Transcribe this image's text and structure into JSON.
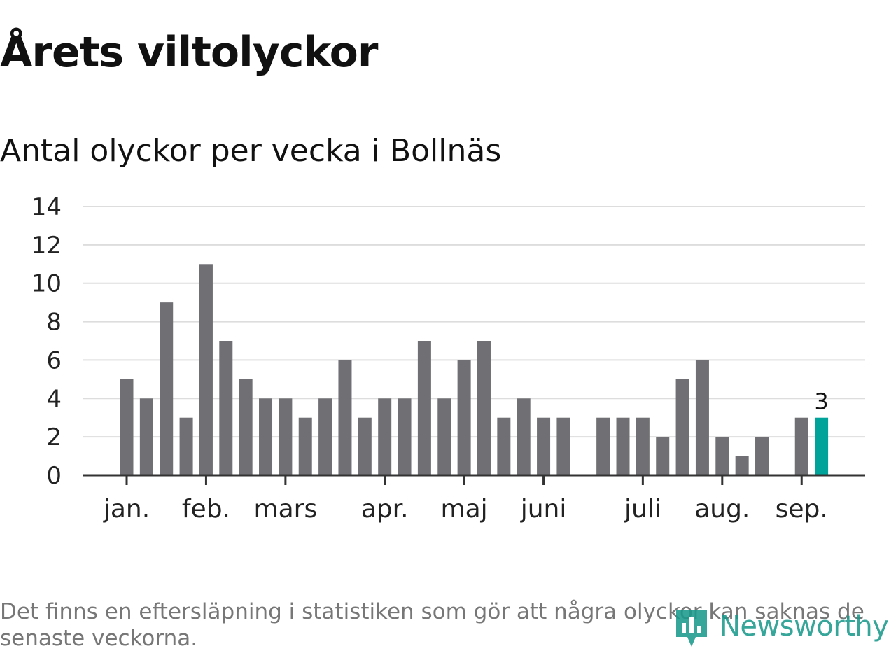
{
  "title": "Årets viltolyckor",
  "subtitle": "Antal olyckor per vecka i Bollnäs",
  "footnote": "Det finns en eftersläpning i statistiken som gör att några olyckor kan saknas de senaste veckorna.",
  "brand": {
    "name": "Newsworthy",
    "logo_icon": "newsworthy-logo-icon"
  },
  "colors": {
    "bar": "#707074",
    "highlight": "#00a399",
    "grid": "#dddddd",
    "axis": "#333333",
    "text": "#111111"
  },
  "chart_data": {
    "type": "bar",
    "title": "Antal olyckor per vecka i Bollnäs",
    "xlabel": "",
    "ylabel": "",
    "x_domain": [
      1,
      40
    ],
    "ylim": [
      0,
      14
    ],
    "yticks": [
      0,
      2,
      4,
      6,
      8,
      10,
      12,
      14
    ],
    "grid": true,
    "month_ticks": [
      {
        "label": "jan.",
        "week": 1
      },
      {
        "label": "feb.",
        "week": 5
      },
      {
        "label": "mars",
        "week": 9
      },
      {
        "label": "apr.",
        "week": 14
      },
      {
        "label": "maj",
        "week": 18
      },
      {
        "label": "juni",
        "week": 22
      },
      {
        "label": "juli",
        "week": 27
      },
      {
        "label": "aug.",
        "week": 31
      },
      {
        "label": "sep.",
        "week": 35
      }
    ],
    "weeks": [
      1,
      2,
      3,
      4,
      5,
      6,
      7,
      8,
      9,
      10,
      11,
      12,
      13,
      14,
      15,
      16,
      17,
      18,
      19,
      20,
      21,
      22,
      23,
      24,
      25,
      26,
      27,
      28,
      29,
      30,
      31,
      32,
      33,
      34,
      35,
      36
    ],
    "values": [
      5,
      4,
      9,
      3,
      11,
      7,
      5,
      4,
      4,
      3,
      4,
      6,
      3,
      4,
      4,
      7,
      4,
      6,
      7,
      3,
      4,
      3,
      3,
      0,
      3,
      3,
      3,
      2,
      5,
      6,
      2,
      1,
      2,
      0,
      3,
      3
    ],
    "highlight_index": 35,
    "data_labels": [
      {
        "index": 35,
        "text": "3"
      }
    ]
  }
}
